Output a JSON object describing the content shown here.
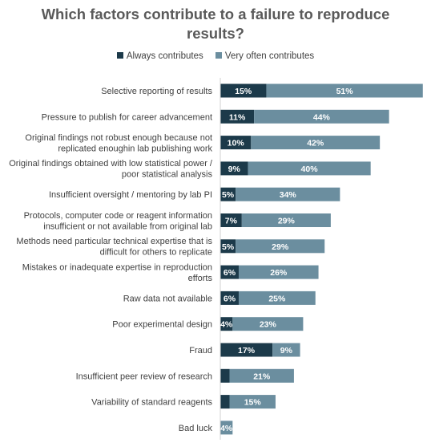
{
  "chart_data": {
    "type": "bar",
    "orientation": "horizontal",
    "stacked": true,
    "title": "Which factors contribute to a failure to reproduce results?",
    "title_lines": [
      "Which factors contribute to a failure to reproduce",
      "results?"
    ],
    "legend_position": "top",
    "categories": [
      [
        "Selective reporting of results"
      ],
      [
        "Pressure to publish for career advancement"
      ],
      [
        "Original findings not robust enough because not",
        "replicated enoughin lab publishing work"
      ],
      [
        "Original findings obtained with low statistical power /",
        "poor statistical analysis"
      ],
      [
        "Insufficient oversight / mentoring by lab PI"
      ],
      [
        "Protocols, computer code or reagent information",
        "insufficient or not available from original lab"
      ],
      [
        "Methods need particular technical expertise that is",
        "difficult for others to replicate"
      ],
      [
        "Mistakes or inadequate expertise in reproduction",
        "efforts"
      ],
      [
        "Raw data not available"
      ],
      [
        "Poor experimental design"
      ],
      [
        "Fraud"
      ],
      [
        "Insufficient peer review of research"
      ],
      [
        "Variability of standard reagents"
      ],
      [
        "Bad luck"
      ]
    ],
    "series": [
      {
        "name": "Always contributes",
        "color": "#1c3a4a",
        "values": [
          15,
          11,
          10,
          9,
          5,
          7,
          5,
          6,
          6,
          4,
          17,
          3,
          3,
          0
        ],
        "labels": [
          "15%",
          "11%",
          "10%",
          "9%",
          "5%",
          "7%",
          "5%",
          "6%",
          "6%",
          "4%",
          "17%",
          "",
          "",
          ""
        ]
      },
      {
        "name": "Very often contributes",
        "color": "#6b8e9f",
        "values": [
          51,
          44,
          42,
          40,
          34,
          29,
          29,
          26,
          25,
          23,
          9,
          21,
          15,
          4
        ],
        "labels": [
          "51%",
          "44%",
          "42%",
          "40%",
          "34%",
          "29%",
          "29%",
          "26%",
          "25%",
          "23%",
          "9%",
          "21%",
          "15%",
          "4%"
        ]
      }
    ],
    "grid": false
  }
}
